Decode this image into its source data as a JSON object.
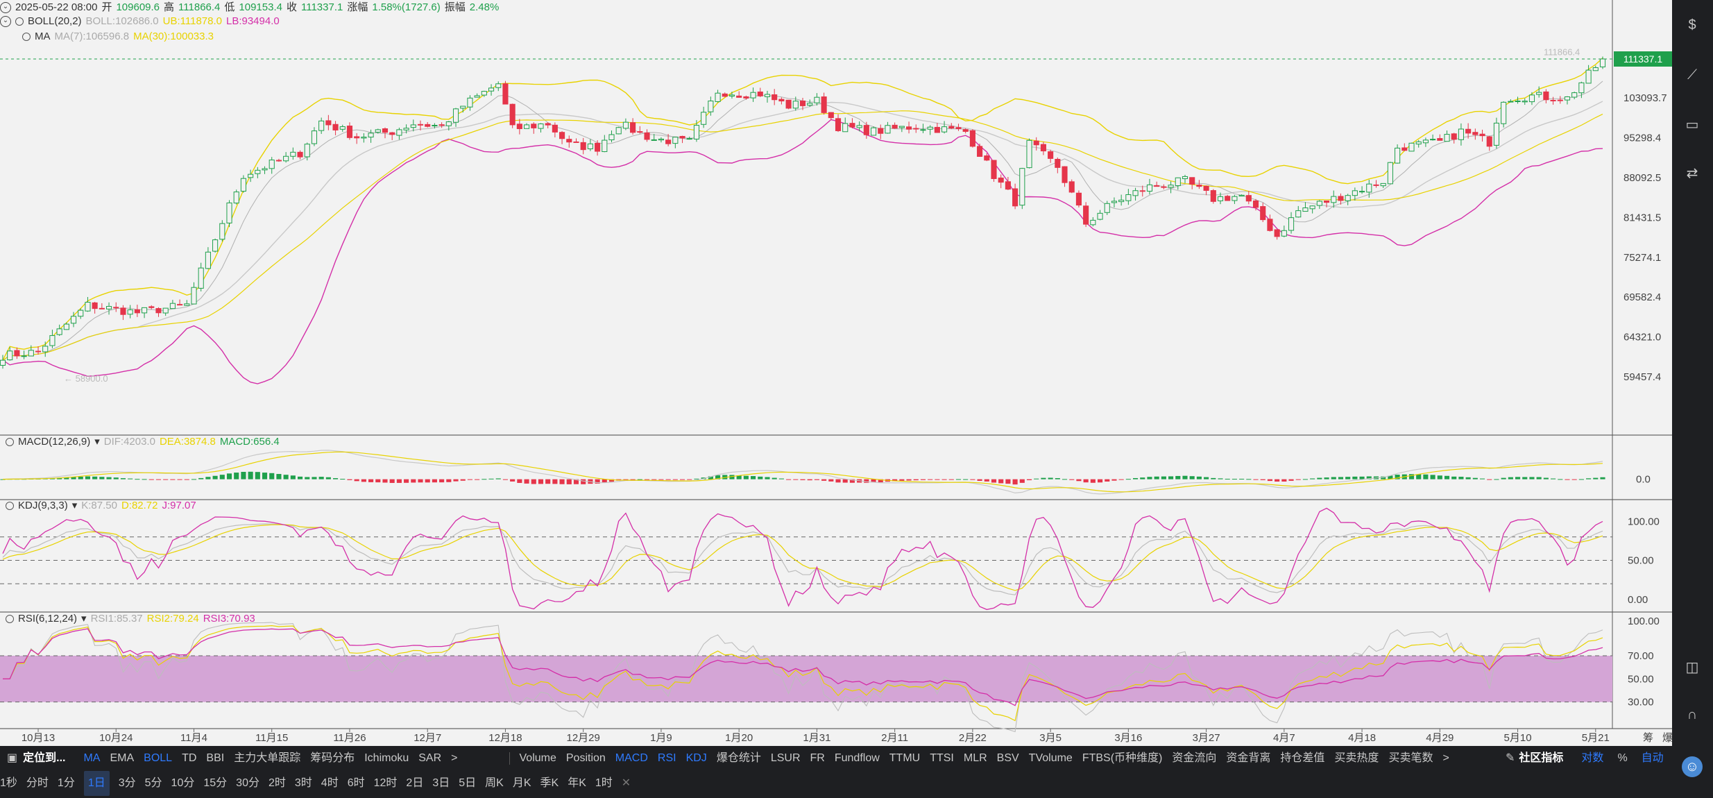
{
  "header": {
    "date": "2025-05-22 08:00",
    "open_label": "开",
    "open": "109609.6",
    "high_label": "高",
    "high": "111866.4",
    "low_label": "低",
    "low": "109153.4",
    "close_label": "收",
    "close": "111337.1",
    "change_label": "涨幅",
    "change": "1.58%(1727.6)",
    "amp_label": "振幅",
    "amp": "2.48%"
  },
  "boll_legend": {
    "name": "BOLL(20,2)",
    "boll": "BOLL:102686.0",
    "ub": "UB:111878.0",
    "lb": "LB:93494.0"
  },
  "ma_legend": {
    "name": "MA",
    "ma7": "MA(7):106596.8",
    "ma30": "MA(30):100033.3"
  },
  "macd_legend": {
    "name": "MACD(12,26,9)",
    "dif": "DIF:4203.0",
    "dea": "DEA:3874.8",
    "macd": "MACD:656.4"
  },
  "kdj_legend": {
    "name": "KDJ(9,3,3)",
    "k": "K:87.50",
    "d": "D:82.72",
    "j": "J:97.07"
  },
  "rsi_legend": {
    "name": "RSI(6,12,24)",
    "rsi1": "RSI1:85.37",
    "rsi2": "RSI2:79.24",
    "rsi3": "RSI3:70.93"
  },
  "annotations": {
    "high_marker": "111866.4",
    "low_marker": "← 58900.0"
  },
  "current_price": "111337.1",
  "chart_data": [
    {
      "type": "candlestick",
      "title": "",
      "price_ticks": [
        "103093.7",
        "95298.4",
        "88092.5",
        "81431.5",
        "75274.1",
        "69582.4",
        "64321.0",
        "59457.4"
      ],
      "x_ticks": [
        "10月13",
        "10月24",
        "11月4",
        "11月15",
        "11月26",
        "12月7",
        "12月18",
        "12月29",
        "1月9",
        "1月20",
        "1月31",
        "2月11",
        "2月22",
        "3月5",
        "3月16",
        "3月27",
        "4月7",
        "4月18",
        "4月29",
        "5月10",
        "5月21"
      ],
      "ylim": [
        55000,
        116000
      ],
      "log_scale": true,
      "anchor_closes": [
        [
          "10-08",
          62000
        ],
        [
          "10-13",
          62500
        ],
        [
          "10-20",
          68500
        ],
        [
          "10-27",
          67500
        ],
        [
          "11-03",
          68500
        ],
        [
          "11-06",
          75500
        ],
        [
          "11-11",
          88500
        ],
        [
          "11-13",
          89500
        ],
        [
          "11-19",
          92500
        ],
        [
          "11-22",
          98500
        ],
        [
          "11-27",
          95500
        ],
        [
          "12-02",
          96500
        ],
        [
          "12-05",
          98000
        ],
        [
          "12-09",
          97500
        ],
        [
          "12-12",
          101500
        ],
        [
          "12-17",
          106000
        ],
        [
          "12-19",
          97000
        ],
        [
          "12-24",
          98000
        ],
        [
          "12-27",
          94000
        ],
        [
          "12-31",
          93500
        ],
        [
          "01-03",
          98000
        ],
        [
          "01-08",
          95000
        ],
        [
          "01-13",
          94500
        ],
        [
          "01-17",
          104500
        ],
        [
          "01-20",
          104000
        ],
        [
          "01-23",
          104000
        ],
        [
          "01-27",
          101500
        ],
        [
          "01-31",
          102500
        ],
        [
          "02-03",
          97500
        ],
        [
          "02-08",
          96500
        ],
        [
          "02-14",
          97500
        ],
        [
          "02-21",
          96500
        ],
        [
          "02-25",
          88500
        ],
        [
          "02-28",
          84000
        ],
        [
          "03-02",
          94200
        ],
        [
          "03-06",
          90000
        ],
        [
          "03-10",
          80500
        ],
        [
          "03-14",
          84000
        ],
        [
          "03-19",
          86500
        ],
        [
          "03-24",
          87500
        ],
        [
          "03-28",
          84500
        ],
        [
          "04-01",
          85000
        ],
        [
          "04-06",
          78500
        ],
        [
          "04-09",
          82500
        ],
        [
          "04-14",
          84500
        ],
        [
          "04-21",
          87500
        ],
        [
          "04-23",
          93500
        ],
        [
          "04-29",
          94500
        ],
        [
          "05-02",
          96500
        ],
        [
          "05-06",
          94500
        ],
        [
          "05-08",
          103000
        ],
        [
          "05-12",
          103500
        ],
        [
          "05-17",
          103000
        ],
        [
          "05-21",
          109600
        ],
        [
          "05-22",
          111337
        ]
      ],
      "series": [
        {
          "name": "UB",
          "color": "#e8d200"
        },
        {
          "name": "BOLL",
          "color": "#b8b8b8"
        },
        {
          "name": "LB",
          "color": "#d42fa8"
        },
        {
          "name": "MA(7)",
          "color": "#b8b8b8"
        },
        {
          "name": "MA(30)",
          "color": "#e8d200"
        }
      ]
    },
    {
      "type": "bar",
      "title": "",
      "y_ticks": [
        "0.0"
      ],
      "ylim": [
        -4000,
        7000
      ]
    },
    {
      "type": "line",
      "title": "",
      "y_ticks": [
        "100.00",
        "50.00",
        "0.00"
      ],
      "ylim": [
        -10,
        110
      ]
    },
    {
      "type": "line",
      "title": "",
      "y_ticks": [
        "100.00",
        "70.00",
        "50.00",
        "30.00"
      ],
      "ylim": [
        10,
        100
      ]
    }
  ],
  "right_axis_extra": {
    "label1": "筹",
    "label2": "爆"
  },
  "bottom": {
    "left_title": "定位到...",
    "overlay_items": [
      "MA",
      "EMA",
      "BOLL",
      "TD",
      "BBI",
      "主力大单跟踪",
      "筹码分布",
      "Ichimoku",
      "SAR"
    ],
    "overlay_active": [
      "MA",
      "BOLL"
    ],
    "more1": ">",
    "indicator_items": [
      "Volume",
      "Position",
      "MACD",
      "RSI",
      "KDJ",
      "爆仓统计",
      "LSUR",
      "FR",
      "Fundflow",
      "TTMU",
      "TTSI",
      "MLR",
      "BSV",
      "TVolume",
      "FTBS(币种维度)",
      "资金流向",
      "资金背离",
      "持仓差值",
      "买卖热度",
      "买卖笔数"
    ],
    "indicator_active": [
      "MACD",
      "RSI",
      "KDJ"
    ],
    "more2": ">",
    "community": "社区指标",
    "log": "对数",
    "pct": "%",
    "auto": "自动",
    "timeframes": [
      "1秒",
      "分时",
      "1分",
      "1日",
      "3分",
      "5分",
      "10分",
      "15分",
      "30分",
      "2时",
      "3时",
      "4时",
      "6时",
      "12时",
      "2日",
      "3日",
      "5日",
      "周K",
      "月K",
      "季K",
      "年K",
      "1时"
    ],
    "timeframe_active": "1日",
    "close_x": "✕"
  }
}
